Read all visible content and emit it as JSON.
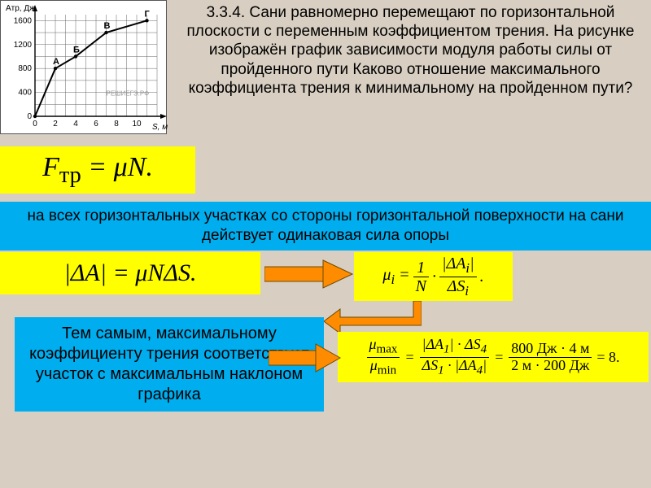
{
  "problem": {
    "number": "3.3.4.",
    "text": "Сани равномерно перемещают по горизонтальной плоскости с переменным коэффициентом трения. На рисунке изображён график зависимости модуля работы силы от пройденного пути Каково отношение максимального коэффициента трения к минимальному на пройденном пути?"
  },
  "graph": {
    "y_label": "Aтр, Дж",
    "x_label": "S, м",
    "y_ticks": [
      0,
      400,
      800,
      1200,
      1600
    ],
    "x_ticks": [
      0,
      2,
      4,
      6,
      8,
      10
    ],
    "points": [
      {
        "s": 0,
        "a": 0,
        "label": ""
      },
      {
        "s": 2,
        "a": 800,
        "label": "А"
      },
      {
        "s": 4,
        "a": 1000,
        "label": "Б"
      },
      {
        "s": 7,
        "a": 1400,
        "label": "В"
      },
      {
        "s": 11,
        "a": 1600,
        "label": "Г"
      }
    ],
    "watermark": "РЕШИЕГЭ.РФ",
    "axis_color": "#000000",
    "grid_color": "#666666",
    "line_color": "#000000",
    "bg": "#ffffff",
    "fontsize_labels": 10,
    "fontsize_ticks": 10,
    "fontsize_points": 11,
    "xlim": [
      0,
      12
    ],
    "ylim": [
      0,
      1700
    ]
  },
  "formulas": {
    "ftr": "Fтр = μN.",
    "da": "|ΔA| = μNΔS.",
    "mui_lhs": "μᵢ =",
    "mui_mid": "1",
    "mui_mid2": "N",
    "mui_rhs_num": "|ΔAᵢ|",
    "mui_rhs_den": "ΔSᵢ",
    "ratio_l_num": "μmax",
    "ratio_l_den": "μmin",
    "ratio_m_num": "|ΔA₁| · ΔS₄",
    "ratio_m_den": "ΔS₁ · |ΔA₄|",
    "ratio_r_num": "800 Дж · 4 м",
    "ratio_r_den": "2 м · 200 Дж",
    "ratio_result": "= 8."
  },
  "bands": {
    "blue1": "на всех горизонтальных участках со стороны горизонтальной поверхности на сани действует одинаковая сила опоры",
    "blue2": "Тем самым, максимальному коэффициенту трения соответствует участок с максимальным наклоном графика"
  },
  "colors": {
    "slide_bg": "#d8cfc2",
    "highlight": "#ffff00",
    "accent": "#00aeef",
    "arrow": "#ff8c00",
    "arrow_border": "#6b4a00"
  }
}
